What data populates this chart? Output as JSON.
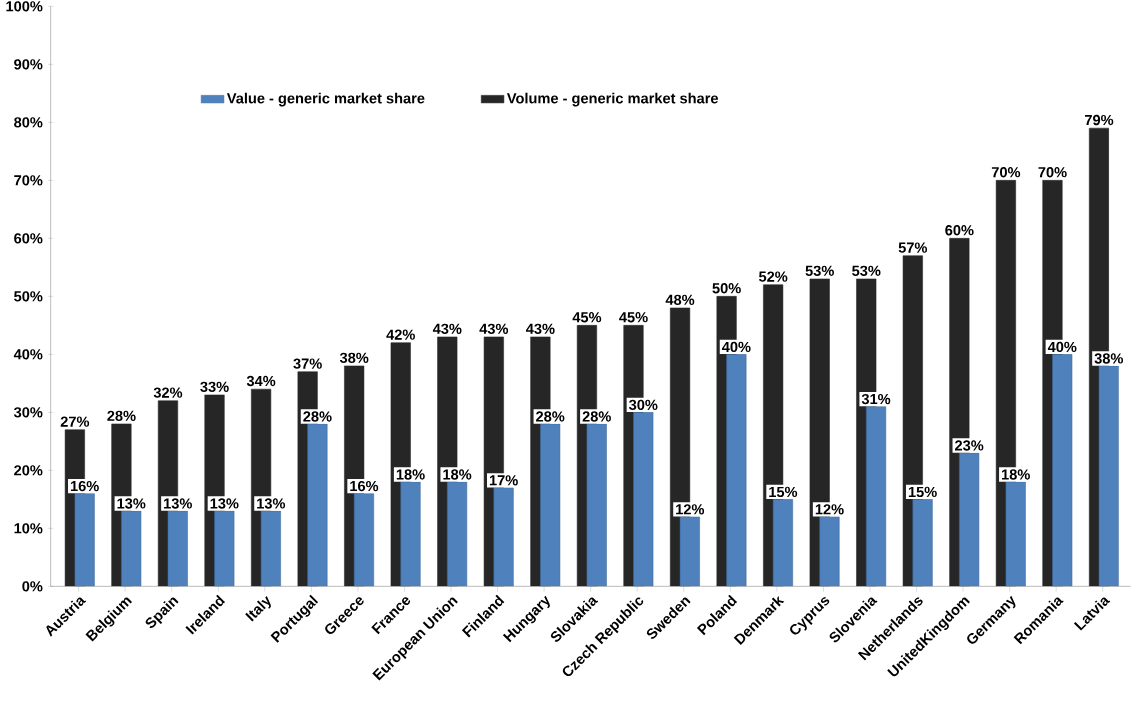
{
  "chart_data": {
    "type": "bar",
    "categories": [
      "Austria",
      "Belgium",
      "Spain",
      "Ireland",
      "Italy",
      "Portugal",
      "Greece",
      "France",
      "European Union",
      "Finland",
      "Hungary",
      "Slovakia",
      "Czech Republic",
      "Sweden",
      "Poland",
      "Denmark",
      "Cyprus",
      "Slovenia",
      "Netherlands",
      "UnitedKingdom",
      "Germany",
      "Romania",
      "Latvia"
    ],
    "series": [
      {
        "name": "Value - generic market share",
        "color": "#4f81bd",
        "values": [
          16,
          13,
          13,
          13,
          13,
          28,
          16,
          18,
          18,
          17,
          28,
          28,
          30,
          12,
          40,
          15,
          12,
          31,
          15,
          23,
          18,
          40,
          38
        ],
        "value_labels": [
          "16%",
          "13%",
          "13%",
          "13%",
          "13%",
          "28%",
          "16%",
          "18%",
          "18%",
          "17%",
          "28%",
          "28%",
          "30%",
          "12%",
          "40%",
          "15%",
          "12%",
          "31%",
          "15%",
          "23%",
          "18%",
          "40%",
          "38%"
        ]
      },
      {
        "name": "Volume - generic market share",
        "color": "#262626",
        "values": [
          27,
          28,
          32,
          33,
          34,
          37,
          38,
          42,
          43,
          43,
          43,
          45,
          45,
          48,
          50,
          52,
          53,
          53,
          57,
          60,
          70,
          70,
          79
        ],
        "value_labels": [
          "27%",
          "28%",
          "32%",
          "33%",
          "34%",
          "37%",
          "38%",
          "42%",
          "43%",
          "43%",
          "43%",
          "45%",
          "45%",
          "48%",
          "50%",
          "52%",
          "53%",
          "53%",
          "57%",
          "60%",
          "70%",
          "70%",
          "79%"
        ]
      }
    ],
    "ylim": [
      0,
      100
    ],
    "yticks": [
      {
        "value": 0,
        "label": "0%"
      },
      {
        "value": 10,
        "label": "10%"
      },
      {
        "value": 20,
        "label": "20%"
      },
      {
        "value": 30,
        "label": "30%"
      },
      {
        "value": 40,
        "label": "40%"
      },
      {
        "value": 50,
        "label": "50%"
      },
      {
        "value": 60,
        "label": "60%"
      },
      {
        "value": 70,
        "label": "70%"
      },
      {
        "value": 80,
        "label": "80%"
      },
      {
        "value": 90,
        "label": "90%"
      },
      {
        "value": 100,
        "label": "100%"
      }
    ],
    "legend": "top",
    "grid": false
  }
}
